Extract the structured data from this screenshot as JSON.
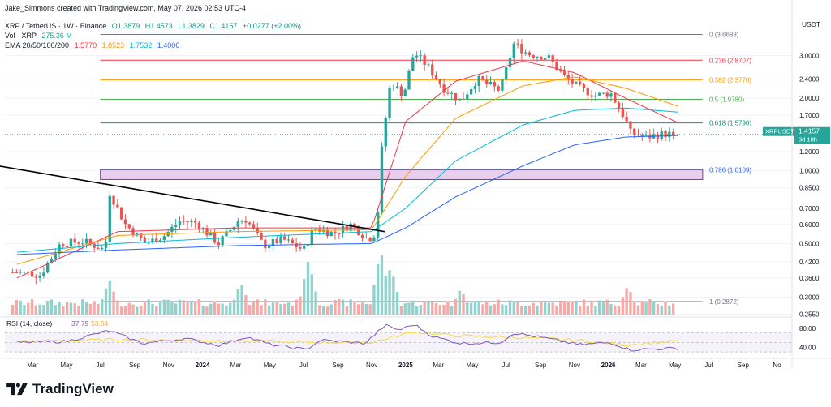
{
  "credit": "Jake_Simmons created with TradingView.com, May 07, 2026 02:53 UTC-4",
  "header": {
    "symbol": "XRP / TetherUS · 1W · Binance",
    "ohlc": [
      "O1.3879",
      "H1.4573",
      "L1.3829",
      "C1.4157",
      "+0.0277 (+2.00%)"
    ],
    "vol_label": "Vol · XRP",
    "vol_value": "275.36 M",
    "ema_label": "EMA 20/50/100/200",
    "ema_values": [
      "1.5770",
      "1.8523",
      "1.7532",
      "1.4006"
    ]
  },
  "brand": {
    "name": "TradingView"
  },
  "colors": {
    "up": "#26a69a",
    "down": "#ef5350",
    "up_vol": "#92d2cc",
    "down_vol": "#f7a9a7",
    "ema20": "#f23645",
    "ema50": "#ff9800",
    "ema100": "#00bcd4",
    "ema200": "#2962ff",
    "trendline": "#000000",
    "zone_fill": "#e1bee7",
    "zone_border": "#9c27b0",
    "rsi": "#7e57c2",
    "rsi_ma": "#fdd835",
    "price_tag": "#26a69a"
  },
  "chart_data": {
    "type": "candlestick",
    "y_axis_title": "USDT",
    "scale": "log",
    "ylim": [
      0.25,
      4.3
    ],
    "y_ticks": [
      "3.0000",
      "2.4000",
      "2.0000",
      "1.7000",
      "1.2000",
      "1.0000",
      "0.8500",
      "0.7000",
      "0.6000",
      "0.5000",
      "0.4200",
      "0.3600",
      "0.3000",
      "0.2550"
    ],
    "x_ticks": [
      "Mar",
      "May",
      "Jul",
      "Sep",
      "Nov",
      "2024",
      "Mar",
      "May",
      "Jul",
      "Sep",
      "Nov",
      "2025",
      "Mar",
      "May",
      "Jul",
      "Sep",
      "Nov",
      "2026",
      "Mar",
      "May",
      "Jul",
      "Sep",
      "No"
    ],
    "last_price": {
      "symbol": "XRPUSDT",
      "price": "1.4157",
      "countdown": "3d 18h"
    },
    "fib_levels": [
      {
        "ratio": "0 (3.6688)",
        "price": 3.6688,
        "color": "#787b86"
      },
      {
        "ratio": "0.236 (2.8707)",
        "price": 2.8707,
        "color": "#f23645"
      },
      {
        "ratio": "0.382 (2.3770)",
        "price": 2.377,
        "color": "#ff9800"
      },
      {
        "ratio": "0.5 (1.9780)",
        "price": 1.978,
        "color": "#4caf50"
      },
      {
        "ratio": "0.618 (1.5790)",
        "price": 1.579,
        "color": "#089981"
      },
      {
        "ratio": "0.786 (1.0109)",
        "price": 1.0109,
        "color": "#2962ff"
      },
      {
        "ratio": "1 (0.2872)",
        "price": 0.2872,
        "color": "#787b86"
      }
    ],
    "support_zone": {
      "low": 0.92,
      "high": 1.0109
    },
    "anchors": [
      [
        "2023-02-01",
        0.38
      ],
      [
        "2023-03-15",
        0.37
      ],
      [
        "2023-04-20",
        0.5
      ],
      [
        "2023-06-01",
        0.51
      ],
      [
        "2023-07-10",
        0.47
      ],
      [
        "2023-07-17",
        0.82
      ],
      [
        "2023-08-15",
        0.6
      ],
      [
        "2023-09-20",
        0.5
      ],
      [
        "2023-10-25",
        0.54
      ],
      [
        "2023-11-20",
        0.62
      ],
      [
        "2023-12-20",
        0.61
      ],
      [
        "2024-01-30",
        0.5
      ],
      [
        "2024-03-05",
        0.62
      ],
      [
        "2024-03-20",
        0.63
      ],
      [
        "2024-04-20",
        0.49
      ],
      [
        "2024-05-25",
        0.52
      ],
      [
        "2024-07-01",
        0.47
      ],
      [
        "2024-07-20",
        0.58
      ],
      [
        "2024-08-25",
        0.55
      ],
      [
        "2024-09-25",
        0.6
      ],
      [
        "2024-10-25",
        0.52
      ],
      [
        "2024-11-10",
        0.56
      ],
      [
        "2024-11-17",
        1.12
      ],
      [
        "2024-11-25",
        1.6
      ],
      [
        "2024-12-05",
        2.35
      ],
      [
        "2024-12-28",
        2.05
      ],
      [
        "2025-01-16",
        3.1
      ],
      [
        "2025-02-10",
        2.7
      ],
      [
        "2025-03-10",
        2.2
      ],
      [
        "2025-04-10",
        1.95
      ],
      [
        "2025-05-10",
        2.4
      ],
      [
        "2025-06-20",
        2.15
      ],
      [
        "2025-07-15",
        3.35
      ],
      [
        "2025-08-10",
        3.05
      ],
      [
        "2025-09-15",
        2.95
      ],
      [
        "2025-10-10",
        2.5
      ],
      [
        "2025-11-10",
        2.2
      ],
      [
        "2025-12-10",
        2.05
      ],
      [
        "2026-01-05",
        2.1
      ],
      [
        "2026-01-31",
        1.65
      ],
      [
        "2026-02-10",
        1.44
      ],
      [
        "2026-03-10",
        1.38
      ],
      [
        "2026-04-10",
        1.42
      ],
      [
        "2026-05-07",
        1.4157
      ]
    ],
    "ema_anchors": {
      "ema20": [
        [
          "2023-02-01",
          0.36
        ],
        [
          "2023-08-01",
          0.56
        ],
        [
          "2024-03-01",
          0.58
        ],
        [
          "2024-11-01",
          0.58
        ],
        [
          "2025-01-01",
          1.6
        ],
        [
          "2025-04-01",
          2.35
        ],
        [
          "2025-08-01",
          2.85
        ],
        [
          "2025-11-01",
          2.55
        ],
        [
          "2026-02-01",
          2.0
        ],
        [
          "2026-05-07",
          1.58
        ]
      ],
      "ema50": [
        [
          "2023-02-01",
          0.41
        ],
        [
          "2023-08-01",
          0.54
        ],
        [
          "2024-03-01",
          0.56
        ],
        [
          "2024-11-01",
          0.57
        ],
        [
          "2025-01-01",
          0.95
        ],
        [
          "2025-04-01",
          1.65
        ],
        [
          "2025-08-01",
          2.25
        ],
        [
          "2025-11-01",
          2.45
        ],
        [
          "2026-02-01",
          2.2
        ],
        [
          "2026-05-07",
          1.85
        ]
      ],
      "ema100": [
        [
          "2023-02-01",
          0.46
        ],
        [
          "2023-08-01",
          0.5
        ],
        [
          "2024-03-01",
          0.53
        ],
        [
          "2024-11-01",
          0.56
        ],
        [
          "2025-01-01",
          0.7
        ],
        [
          "2025-04-01",
          1.1
        ],
        [
          "2025-08-01",
          1.55
        ],
        [
          "2025-11-01",
          1.78
        ],
        [
          "2026-02-01",
          1.82
        ],
        [
          "2026-05-07",
          1.75
        ]
      ],
      "ema200": [
        [
          "2023-02-01",
          0.45
        ],
        [
          "2023-08-01",
          0.47
        ],
        [
          "2024-03-01",
          0.49
        ],
        [
          "2024-11-01",
          0.5
        ],
        [
          "2025-01-01",
          0.58
        ],
        [
          "2025-04-01",
          0.78
        ],
        [
          "2025-08-01",
          1.05
        ],
        [
          "2025-11-01",
          1.28
        ],
        [
          "2026-02-01",
          1.38
        ],
        [
          "2026-05-07",
          1.4
        ]
      ]
    },
    "trendline": [
      [
        "2022-08-01",
        1.2
      ],
      [
        "2024-11-24",
        0.56
      ]
    ],
    "volume_peaks": [
      [
        "2023-07-17",
        0.55
      ],
      [
        "2024-03-10",
        0.5
      ],
      [
        "2024-07-10",
        0.85
      ],
      [
        "2024-11-17",
        1.0
      ],
      [
        "2024-12-05",
        0.75
      ],
      [
        "2025-04-10",
        0.4
      ],
      [
        "2026-02-05",
        0.45
      ]
    ],
    "rsi": {
      "label": "RSI (14, close)",
      "value": "37.79",
      "ma_value": "53.54",
      "ticks": [
        "80.00",
        "40.00"
      ],
      "ylim": [
        20,
        100
      ],
      "band": [
        30,
        70
      ],
      "anchors": [
        [
          "2023-02-01",
          50
        ],
        [
          "2023-05-01",
          52
        ],
        [
          "2023-07-17",
          75
        ],
        [
          "2023-09-15",
          48
        ],
        [
          "2023-12-01",
          58
        ],
        [
          "2024-02-01",
          44
        ],
        [
          "2024-03-20",
          62
        ],
        [
          "2024-05-01",
          46
        ],
        [
          "2024-07-05",
          35
        ],
        [
          "2024-08-01",
          55
        ],
        [
          "2024-10-20",
          48
        ],
        [
          "2024-11-25",
          86
        ],
        [
          "2024-12-20",
          76
        ],
        [
          "2025-01-16",
          88
        ],
        [
          "2025-02-20",
          62
        ],
        [
          "2025-04-10",
          48
        ],
        [
          "2025-06-20",
          50
        ],
        [
          "2025-07-15",
          70
        ],
        [
          "2025-09-15",
          58
        ],
        [
          "2025-11-10",
          45
        ],
        [
          "2026-01-05",
          50
        ],
        [
          "2026-02-10",
          34
        ],
        [
          "2026-03-10",
          36
        ],
        [
          "2026-05-07",
          37.79
        ]
      ],
      "ma_anchors": [
        [
          "2023-02-01",
          52
        ],
        [
          "2023-08-01",
          56
        ],
        [
          "2024-03-01",
          54
        ],
        [
          "2024-08-01",
          50
        ],
        [
          "2024-11-01",
          50
        ],
        [
          "2025-01-15",
          72
        ],
        [
          "2025-04-01",
          64
        ],
        [
          "2025-08-01",
          60
        ],
        [
          "2025-11-01",
          55
        ],
        [
          "2026-02-01",
          45
        ],
        [
          "2026-05-07",
          53.54
        ]
      ]
    }
  }
}
